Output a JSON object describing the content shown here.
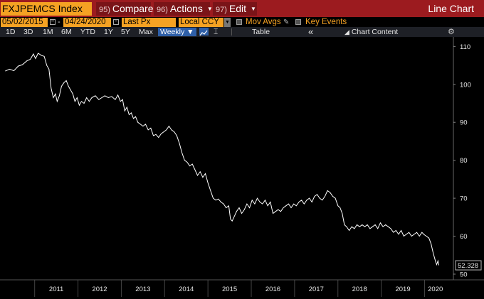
{
  "titlebar": {
    "security": "FXJPEMCS Index",
    "compare": {
      "num": "95)",
      "label": "Compare"
    },
    "actions": {
      "num": "96)",
      "label": "Actions"
    },
    "edit": {
      "num": "97)",
      "label": "Edit"
    },
    "view_label": "Line Chart"
  },
  "params": {
    "start_date": "05/02/2015",
    "end_date": "04/24/2020",
    "date_separator": "-",
    "field": "Last Px",
    "currency": "Local CCY",
    "mov_avgs": "Mov Avgs",
    "key_events": "Key Events"
  },
  "toolbar": {
    "ranges": [
      "1D",
      "3D",
      "1M",
      "6M",
      "YTD",
      "1Y",
      "5Y",
      "Max"
    ],
    "frequency": "Weekly",
    "table_label": "Table",
    "collapse_glyph": "«",
    "chart_content_label": "Chart Content"
  },
  "colors": {
    "title_bar": "#9c1b1f",
    "field_bg": "#f5a223",
    "toolbar_bg": "#1e2026",
    "selected": "#2e5fa8",
    "line": "#ffffff",
    "background": "#000000"
  },
  "chart_data": {
    "type": "line",
    "title": "",
    "xlabel": "",
    "ylabel": "",
    "ylim": [
      48.5,
      112.5
    ],
    "yticks": [
      50,
      60,
      70,
      80,
      90,
      100,
      110
    ],
    "xticks": [
      "2011",
      "2012",
      "2013",
      "2014",
      "2015",
      "2016",
      "2017",
      "2018",
      "2019",
      "2020"
    ],
    "last_value_label": "52.328",
    "series": [
      {
        "values": [
          [
            2010.32,
            103.5
          ],
          [
            2010.42,
            104.0
          ],
          [
            2010.52,
            103.6
          ],
          [
            2010.62,
            104.8
          ],
          [
            2010.72,
            105.2
          ],
          [
            2010.82,
            106.2
          ],
          [
            2010.9,
            106.6
          ],
          [
            2010.97,
            108.0
          ],
          [
            2011.02,
            106.8
          ],
          [
            2011.08,
            108.2
          ],
          [
            2011.16,
            107.6
          ],
          [
            2011.22,
            107.4
          ],
          [
            2011.28,
            105.0
          ],
          [
            2011.33,
            104.0
          ],
          [
            2011.38,
            99.0
          ],
          [
            2011.43,
            96.5
          ],
          [
            2011.48,
            97.5
          ],
          [
            2011.52,
            95.5
          ],
          [
            2011.57,
            97.0
          ],
          [
            2011.62,
            99.5
          ],
          [
            2011.68,
            100.5
          ],
          [
            2011.73,
            101.0
          ],
          [
            2011.78,
            99.5
          ],
          [
            2011.83,
            98.5
          ],
          [
            2011.88,
            97.5
          ],
          [
            2011.93,
            95.5
          ],
          [
            2011.98,
            96.5
          ],
          [
            2012.03,
            94.5
          ],
          [
            2012.08,
            95.5
          ],
          [
            2012.14,
            95.0
          ],
          [
            2012.2,
            96.5
          ],
          [
            2012.26,
            95.5
          ],
          [
            2012.32,
            96.5
          ],
          [
            2012.4,
            97.0
          ],
          [
            2012.48,
            96.0
          ],
          [
            2012.55,
            96.5
          ],
          [
            2012.62,
            97.0
          ],
          [
            2012.7,
            96.5
          ],
          [
            2012.78,
            96.8
          ],
          [
            2012.86,
            96.0
          ],
          [
            2012.92,
            97.2
          ],
          [
            2012.98,
            95.5
          ],
          [
            2013.03,
            96.0
          ],
          [
            2013.08,
            93.0
          ],
          [
            2013.13,
            94.0
          ],
          [
            2013.18,
            92.0
          ],
          [
            2013.23,
            92.5
          ],
          [
            2013.28,
            91.0
          ],
          [
            2013.33,
            91.5
          ],
          [
            2013.38,
            90.0
          ],
          [
            2013.44,
            89.5
          ],
          [
            2013.5,
            89.0
          ],
          [
            2013.56,
            89.5
          ],
          [
            2013.62,
            88.0
          ],
          [
            2013.68,
            88.5
          ],
          [
            2013.74,
            86.5
          ],
          [
            2013.8,
            86.8
          ],
          [
            2013.86,
            86.0
          ],
          [
            2013.92,
            87.0
          ],
          [
            2013.98,
            87.5
          ],
          [
            2014.04,
            88.0
          ],
          [
            2014.1,
            89.0
          ],
          [
            2014.16,
            88.0
          ],
          [
            2014.22,
            87.5
          ],
          [
            2014.28,
            86.5
          ],
          [
            2014.34,
            84.5
          ],
          [
            2014.4,
            82.0
          ],
          [
            2014.46,
            80.0
          ],
          [
            2014.52,
            79.5
          ],
          [
            2014.58,
            78.5
          ],
          [
            2014.64,
            79.0
          ],
          [
            2014.7,
            77.5
          ],
          [
            2014.76,
            76.0
          ],
          [
            2014.82,
            77.0
          ],
          [
            2014.88,
            75.5
          ],
          [
            2014.94,
            76.5
          ],
          [
            2015.0,
            74.0
          ],
          [
            2015.06,
            72.0
          ],
          [
            2015.12,
            70.0
          ],
          [
            2015.18,
            69.5
          ],
          [
            2015.24,
            69.8
          ],
          [
            2015.3,
            69.0
          ],
          [
            2015.36,
            68.5
          ],
          [
            2015.42,
            67.5
          ],
          [
            2015.48,
            68.0
          ],
          [
            2015.52,
            64.5
          ],
          [
            2015.56,
            64.0
          ],
          [
            2015.6,
            65.0
          ],
          [
            2015.66,
            66.5
          ],
          [
            2015.72,
            67.5
          ],
          [
            2015.78,
            66.0
          ],
          [
            2015.84,
            67.0
          ],
          [
            2015.9,
            68.5
          ],
          [
            2015.96,
            67.5
          ],
          [
            2016.02,
            69.5
          ],
          [
            2016.08,
            68.5
          ],
          [
            2016.14,
            70.0
          ],
          [
            2016.2,
            69.0
          ],
          [
            2016.26,
            68.5
          ],
          [
            2016.32,
            69.5
          ],
          [
            2016.38,
            68.0
          ],
          [
            2016.44,
            69.0
          ],
          [
            2016.5,
            66.0
          ],
          [
            2016.56,
            66.5
          ],
          [
            2016.62,
            67.0
          ],
          [
            2016.68,
            66.5
          ],
          [
            2016.74,
            67.5
          ],
          [
            2016.8,
            68.0
          ],
          [
            2016.86,
            68.5
          ],
          [
            2016.92,
            67.5
          ],
          [
            2016.98,
            68.5
          ],
          [
            2017.04,
            68.0
          ],
          [
            2017.1,
            69.0
          ],
          [
            2017.16,
            69.5
          ],
          [
            2017.22,
            68.5
          ],
          [
            2017.28,
            69.5
          ],
          [
            2017.34,
            70.0
          ],
          [
            2017.4,
            69.0
          ],
          [
            2017.46,
            70.5
          ],
          [
            2017.52,
            71.0
          ],
          [
            2017.58,
            70.0
          ],
          [
            2017.64,
            69.5
          ],
          [
            2017.7,
            70.5
          ],
          [
            2017.76,
            72.0
          ],
          [
            2017.82,
            71.5
          ],
          [
            2017.88,
            70.5
          ],
          [
            2017.94,
            70.0
          ],
          [
            2018.0,
            68.0
          ],
          [
            2018.05,
            67.5
          ],
          [
            2018.1,
            66.0
          ],
          [
            2018.15,
            63.0
          ],
          [
            2018.2,
            62.5
          ],
          [
            2018.26,
            61.5
          ],
          [
            2018.32,
            62.5
          ],
          [
            2018.38,
            62.0
          ],
          [
            2018.44,
            63.0
          ],
          [
            2018.5,
            62.5
          ],
          [
            2018.56,
            63.0
          ],
          [
            2018.62,
            62.5
          ],
          [
            2018.68,
            63.0
          ],
          [
            2018.74,
            62.0
          ],
          [
            2018.8,
            62.5
          ],
          [
            2018.86,
            63.0
          ],
          [
            2018.92,
            62.0
          ],
          [
            2018.98,
            63.5
          ],
          [
            2019.04,
            62.5
          ],
          [
            2019.1,
            63.0
          ],
          [
            2019.16,
            62.5
          ],
          [
            2019.22,
            62.0
          ],
          [
            2019.28,
            61.0
          ],
          [
            2019.34,
            61.5
          ],
          [
            2019.4,
            60.5
          ],
          [
            2019.46,
            61.5
          ],
          [
            2019.52,
            60.0
          ],
          [
            2019.58,
            60.5
          ],
          [
            2019.64,
            61.0
          ],
          [
            2019.7,
            60.0
          ],
          [
            2019.76,
            60.5
          ],
          [
            2019.82,
            61.0
          ],
          [
            2019.88,
            60.0
          ],
          [
            2019.94,
            61.0
          ],
          [
            2019.98,
            60.5
          ],
          [
            2020.04,
            60.0
          ],
          [
            2020.1,
            59.5
          ],
          [
            2020.15,
            58.0
          ],
          [
            2020.2,
            55.5
          ],
          [
            2020.25,
            53.5
          ],
          [
            2020.28,
            52.5
          ],
          [
            2020.31,
            53.5
          ],
          [
            2020.33,
            52.328
          ]
        ]
      }
    ]
  }
}
